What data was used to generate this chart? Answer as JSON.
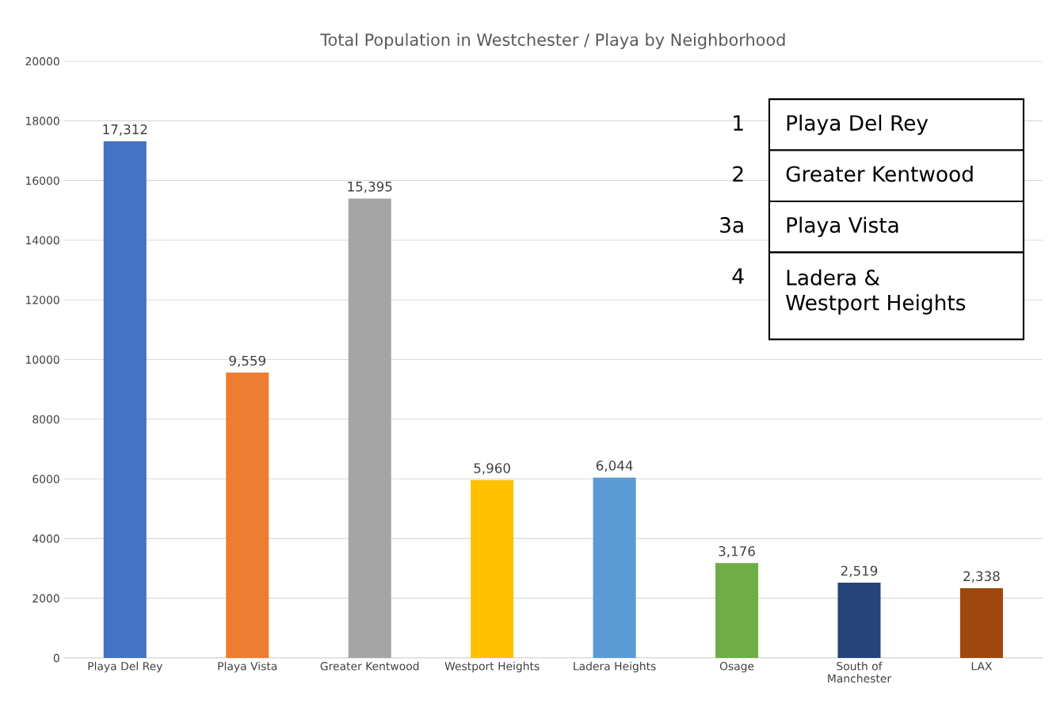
{
  "chart_data": {
    "type": "bar",
    "title": "Total Population in Westchester / Playa by Neighborhood",
    "categories": [
      "Playa Del Rey",
      "Playa Vista",
      "Greater Kentwood",
      "Westport Heights",
      "Ladera Heights",
      "Osage",
      "South of\nManchester",
      "LAX"
    ],
    "values": [
      17312,
      9559,
      15395,
      5960,
      6044,
      3176,
      2519,
      2338
    ],
    "value_labels": [
      "17,312",
      "9,559",
      "15,395",
      "5,960",
      "6,044",
      "3,176",
      "2,519",
      "2,338"
    ],
    "colors": [
      "#4472c4",
      "#ed7d31",
      "#a5a5a5",
      "#ffc000",
      "#5b9bd5",
      "#70ad47",
      "#264478",
      "#9e480e"
    ],
    "ylim": [
      0,
      20000
    ],
    "yticks": [
      0,
      2000,
      4000,
      6000,
      8000,
      10000,
      12000,
      14000,
      16000,
      18000,
      20000
    ],
    "grid": "y",
    "annotations": [
      "1",
      "Playa Del Rey",
      "2",
      "Greater Kentwood",
      "3a",
      "Playa Vista",
      "4",
      "Ladera &\nWestport Heights"
    ]
  }
}
